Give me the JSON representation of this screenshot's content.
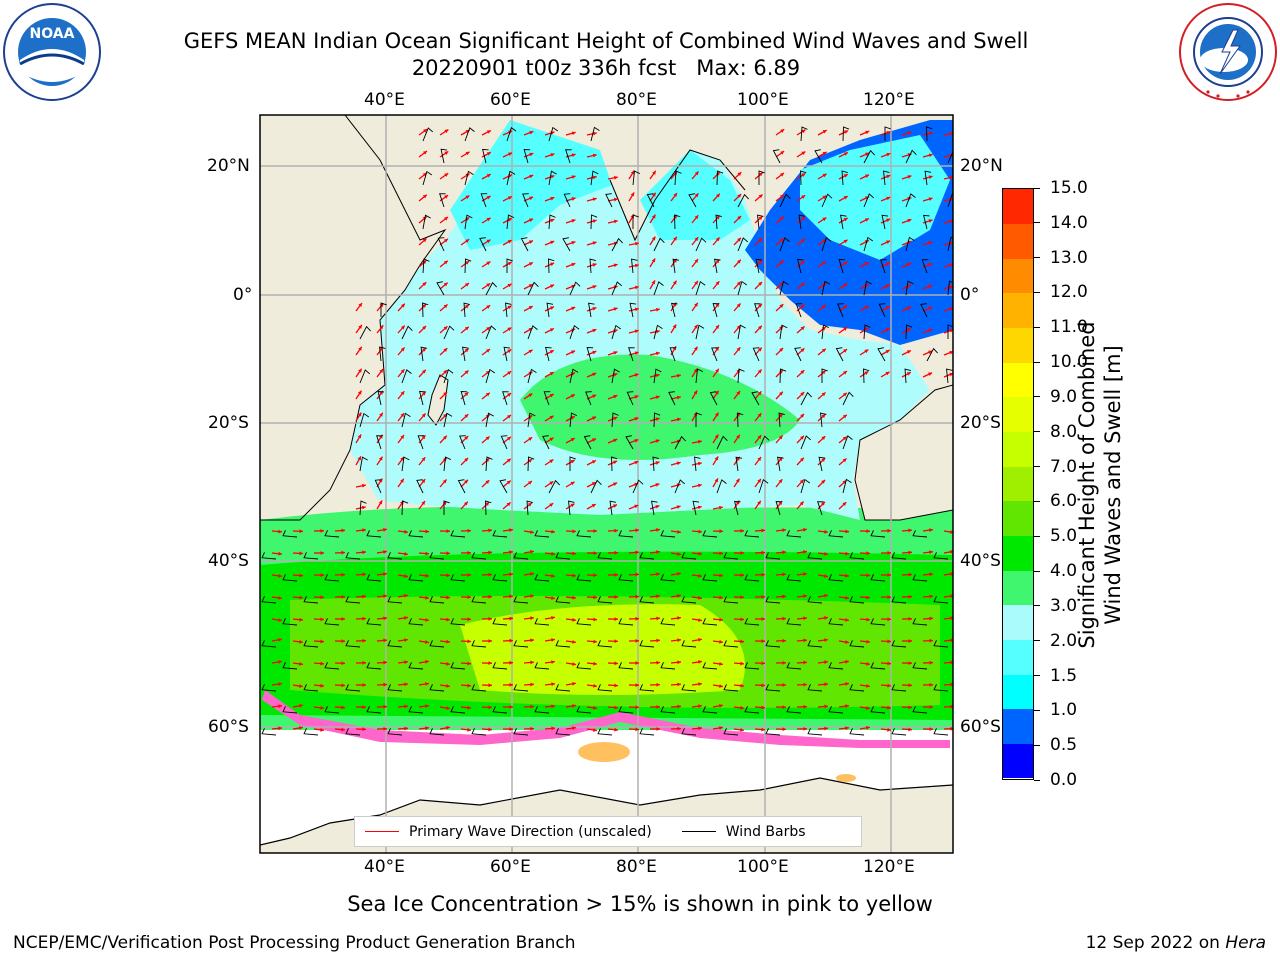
{
  "title": {
    "line1": "GEFS MEAN Indian Ocean Significant Height of Combined Wind Waves and Swell",
    "line2": "20220901 t00z 336h fcst   Max: 6.89"
  },
  "logos": {
    "noaa": {
      "text": "NOAA",
      "ring_text": "NATIONAL OCEANIC AND ATMOSPHERIC ADMINISTRATION · U.S. DEPARTMENT OF COMMERCE"
    },
    "nws": {
      "ring_text": "NATIONAL WEATHER SERVICE"
    }
  },
  "map": {
    "lon_ticks": [
      "40°E",
      "60°E",
      "80°E",
      "100°E",
      "120°E"
    ],
    "lat_ticks": [
      "20°N",
      "0°",
      "20°S",
      "40°S",
      "60°S"
    ],
    "legend": {
      "wave_direction": {
        "label": "Primary Wave Direction (unscaled)",
        "color": "#ff0000"
      },
      "wind_barbs": {
        "label": "Wind Barbs",
        "color": "#000000"
      }
    },
    "colors": {
      "land": "#efecdc",
      "sea_ice": "#ffffff",
      "calm": "#aefcfc",
      "moderate": "#3ff66e",
      "high": "#00e800",
      "peak": "#c6ff00"
    }
  },
  "colorbar": {
    "label_line1": "Significant Height of Combined",
    "label_line2": "Wind Waves and Swell [m]",
    "ticks": [
      "0.0",
      "0.5",
      "1.0",
      "1.5",
      "2.0",
      "3.0",
      "4.0",
      "5.0",
      "6.0",
      "7.0",
      "8.0",
      "9.0",
      "10.0",
      "11.0",
      "12.0",
      "13.0",
      "14.0",
      "15.0"
    ],
    "colors": [
      "#0000ff",
      "#0064ff",
      "#00ffff",
      "#55ffff",
      "#aafcfc",
      "#3ff66e",
      "#00e800",
      "#60e600",
      "#a0ef00",
      "#c6ff00",
      "#e6ff00",
      "#ffff00",
      "#ffd700",
      "#ffb300",
      "#ff8c00",
      "#ff5a00",
      "#ff2800"
    ]
  },
  "note": "Sea Ice Concentration > 15% is shown in pink to yellow",
  "footer": {
    "left": "NCEP/EMC/Verification Post Processing Product Generation Branch",
    "date": "12 Sep 2022 on ",
    "host": "Hera"
  }
}
